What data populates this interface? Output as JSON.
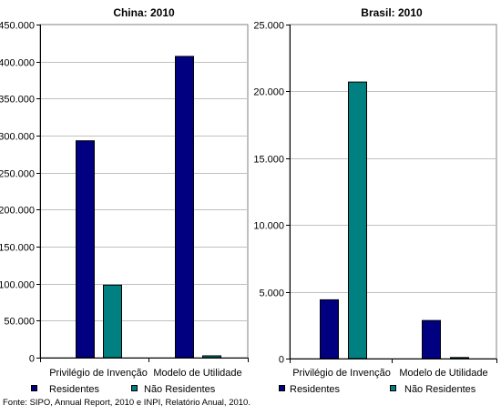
{
  "colors": {
    "residentes": "#000080",
    "nao_residentes": "#008080",
    "grid": "#c0c0c0",
    "axis": "#808080"
  },
  "chart_data": [
    {
      "type": "bar",
      "title": "China: 2010",
      "categories": [
        "Privilégio de Invenção",
        "Modelo de Utilidade"
      ],
      "series": [
        {
          "name": "Residentes",
          "values": [
            293000,
            407000
          ]
        },
        {
          "name": "Não Residentes",
          "values": [
            98000,
            2500
          ]
        }
      ],
      "ylim": [
        0,
        450000
      ],
      "yticks": [
        0,
        50000,
        100000,
        150000,
        200000,
        250000,
        300000,
        350000,
        400000,
        450000
      ],
      "ytick_labels": [
        "0",
        "50.000",
        "100.000",
        "150.000",
        "200.000",
        "250.000",
        "300.000",
        "350.000",
        "400.000",
        "450.000"
      ],
      "grid": true,
      "legend": "bottom"
    },
    {
      "type": "bar",
      "title": "Brasil: 2010",
      "categories": [
        "Privilégio de Invenção",
        "Modelo de Utilidade"
      ],
      "series": [
        {
          "name": "Residentes",
          "values": [
            4400,
            2850
          ]
        },
        {
          "name": "Não Residentes",
          "values": [
            20700,
            80
          ]
        }
      ],
      "ylim": [
        0,
        25000
      ],
      "yticks": [
        0,
        5000,
        10000,
        15000,
        20000,
        25000
      ],
      "ytick_labels": [
        "0",
        "5.000",
        "10.000",
        "15.000",
        "20.000",
        "25.000"
      ],
      "grid": true,
      "legend": "bottom"
    }
  ],
  "source": "Fonte: SIPO, Annual Report, 2010 e INPI, Relatório Anual, 2010."
}
